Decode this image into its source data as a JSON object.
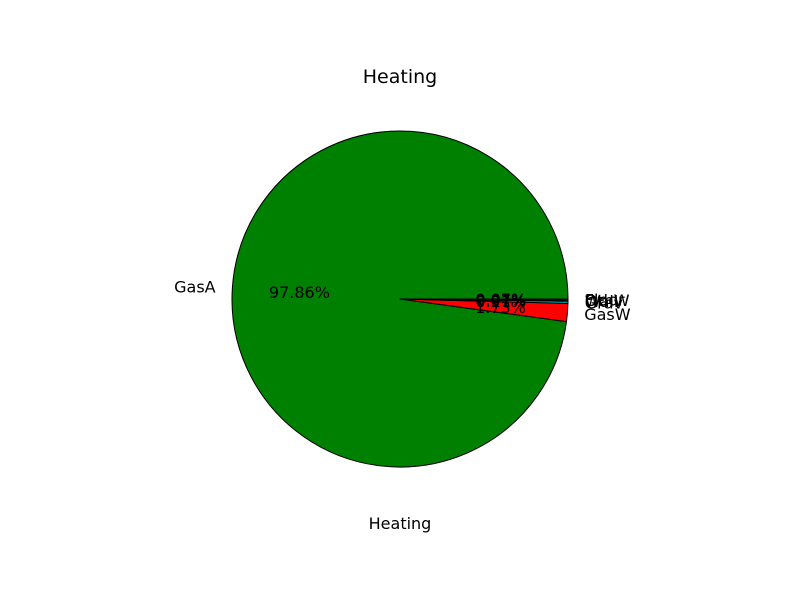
{
  "chart_data": {
    "type": "pie",
    "title": "Heating",
    "xlabel": "Heating",
    "slices": [
      {
        "label": "GasA",
        "value": 97.86,
        "pct_text": "97.86%",
        "color": "#008000"
      },
      {
        "label": "GasW",
        "value": 1.73,
        "pct_text": "1.73%",
        "color": "#ff0000"
      },
      {
        "label": "Grav",
        "value": 0.21,
        "pct_text": "0.21%",
        "color": "#00bfbf"
      },
      {
        "label": "Wall",
        "value": 0.07,
        "pct_text": "0.07%",
        "color": "#0000ff"
      },
      {
        "label": "OthW",
        "value": 0.07,
        "pct_text": "0.07%",
        "color": "#bf00bf"
      },
      {
        "label": "Floor",
        "value": 0.07,
        "pct_text": "0.07%",
        "color": "#bfbf00"
      }
    ]
  }
}
